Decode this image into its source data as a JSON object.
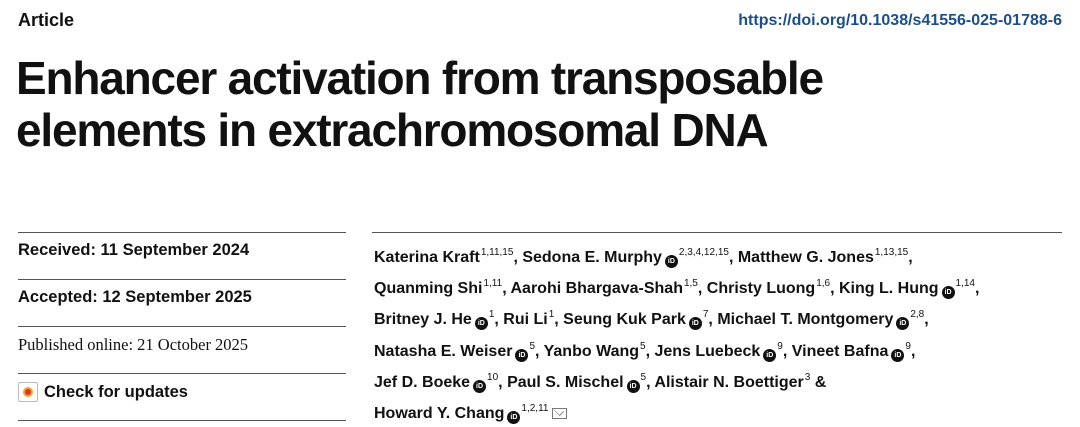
{
  "header": {
    "article_label": "Article",
    "doi": "https://doi.org/10.1038/s41556-025-01788-6"
  },
  "title_lines": [
    "Enhancer activation from transposable",
    "elements in extrachromosomal DNA"
  ],
  "dates": {
    "received": "Received: 11 September 2024",
    "accepted": "Accepted: 12 September 2025",
    "published": "Published online: 21 October 2025"
  },
  "check_updates_label": "Check for updates",
  "authors": [
    {
      "name": "Katerina Kraft",
      "sup": "1,11,15",
      "orcid": false,
      "sep": ", "
    },
    {
      "name": "Sedona E. Murphy",
      "sup": "2,3,4,12,15",
      "orcid": true,
      "sep": ", "
    },
    {
      "name": "Matthew G. Jones",
      "sup": "1,13,15",
      "orcid": false,
      "sep": ","
    },
    {
      "name": "Quanming Shi",
      "sup": "1,11",
      "orcid": false,
      "sep": ", "
    },
    {
      "name": "Aarohi Bhargava-Shah",
      "sup": "1,5",
      "orcid": false,
      "sep": ", "
    },
    {
      "name": "Christy Luong",
      "sup": "1,6",
      "orcid": false,
      "sep": ", "
    },
    {
      "name": "King L. Hung",
      "sup": "1,14",
      "orcid": true,
      "sep": ","
    },
    {
      "name": "Britney J. He",
      "sup": "1",
      "orcid": true,
      "sep": ", "
    },
    {
      "name": "Rui Li",
      "sup": "1",
      "orcid": false,
      "sep": ", "
    },
    {
      "name": "Seung Kuk Park",
      "sup": "7",
      "orcid": true,
      "sep": ", "
    },
    {
      "name": "Michael T. Montgomery",
      "sup": "2,8",
      "orcid": true,
      "sep": ","
    },
    {
      "name": "Natasha E. Weiser",
      "sup": "5",
      "orcid": true,
      "sep": ", "
    },
    {
      "name": "Yanbo Wang",
      "sup": "5",
      "orcid": false,
      "sep": ", "
    },
    {
      "name": "Jens Luebeck",
      "sup": "9",
      "orcid": true,
      "sep": ", "
    },
    {
      "name": "Vineet Bafna",
      "sup": "9",
      "orcid": true,
      "sep": ","
    },
    {
      "name": "Jef D. Boeke",
      "sup": "10",
      "orcid": true,
      "sep": ", "
    },
    {
      "name": "Paul S. Mischel",
      "sup": "5",
      "orcid": true,
      "sep": ", "
    },
    {
      "name": "Alistair N. Boettiger",
      "sup": "3",
      "orcid": false,
      "sep": " &"
    },
    {
      "name": "Howard Y. Chang",
      "sup": "1,2,11",
      "orcid": true,
      "mail": true,
      "sep": ""
    }
  ],
  "author_line_breaks_after": [
    2,
    6,
    10,
    14,
    17
  ]
}
